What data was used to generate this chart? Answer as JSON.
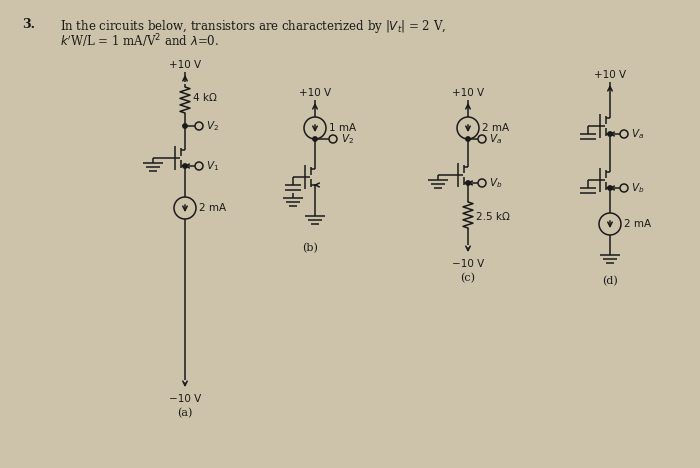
{
  "bg_color": "#ccc3aa",
  "text_color": "#1a1a1a",
  "title_number": "3.",
  "title_line1": "In the circuits below, transistors are characterized by |Vₜ|= 2 V,",
  "title_line2": "kʹW/L = 1 mA/V² and λ=0.",
  "fig_width": 7.0,
  "fig_height": 4.68,
  "dpi": 100
}
